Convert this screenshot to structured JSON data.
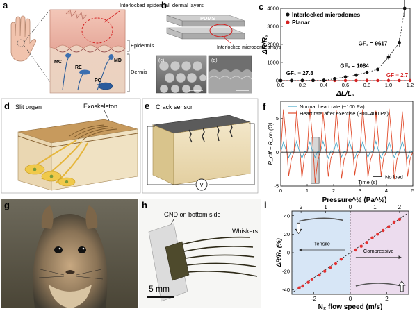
{
  "panel_letters": [
    "a",
    "b",
    "c",
    "d",
    "e",
    "f",
    "g",
    "h",
    "i"
  ],
  "panel_a": {
    "callout": "Interlocked epidermal–dermal layers",
    "layer_epidermis": "Epidermis",
    "layer_dermis": "Dermis",
    "labels": [
      "MC",
      "RE",
      "MD",
      "PC"
    ]
  },
  "panel_b": {
    "top_label": "PDMS",
    "callout": "Interlocked microdome arrays",
    "inset_c": "(c)",
    "inset_d": "(d)"
  },
  "panel_d": {
    "title": "Slit organ",
    "callout": "Exoskeleton"
  },
  "panel_e": {
    "title": "Crack sensor",
    "meter": "V"
  },
  "panel_h": {
    "gnd_label": "GND on bottom side",
    "whiskers_label": "Whiskers",
    "scale": "5 mm"
  },
  "chart_data": [
    {
      "panel": "c",
      "type": "scatter",
      "xlabel": "ΔL/L₀",
      "ylabel": "ΔR/R₀",
      "xlim": [
        0,
        1.2
      ],
      "ylim": [
        0,
        4000
      ],
      "xticks": [
        "0.0",
        "0.2",
        "0.4",
        "0.6",
        "0.8",
        "1.0",
        "1.2"
      ],
      "yticks": [
        "0",
        "1000",
        "2000",
        "3000",
        "4000"
      ],
      "legend": [
        "Interlocked microdomes",
        "Planar"
      ],
      "legend_position": "top-left",
      "annotations": [
        "GF₁ = 27.8",
        "GF₂ = 1084",
        "GF₃ = 9617",
        "GF = 2.7"
      ],
      "series": [
        {
          "name": "Interlocked microdomes",
          "color": "#111111",
          "x": [
            0,
            0.1,
            0.2,
            0.3,
            0.4,
            0.5,
            0.6,
            0.7,
            0.8,
            0.9,
            1.0,
            1.1,
            1.15
          ],
          "y": [
            0,
            3,
            6,
            9,
            12,
            100,
            200,
            300,
            450,
            620,
            1300,
            2100,
            4000
          ]
        },
        {
          "name": "Planar",
          "color": "#d42020",
          "x": [
            0,
            0.1,
            0.2,
            0.3,
            0.4,
            0.5,
            0.6,
            0.7,
            0.8,
            0.9,
            1.0,
            1.1,
            1.2
          ],
          "y": [
            0,
            0,
            0,
            1,
            1,
            1,
            2,
            2,
            2,
            2,
            3,
            3,
            3
          ]
        }
      ]
    },
    {
      "panel": "f",
      "type": "line",
      "xlabel": "Time (s)",
      "ylabel": "R_off − R_on (Ω)",
      "xlim": [
        0,
        5
      ],
      "ylim": [
        -5,
        7.5
      ],
      "xticks": [
        "0",
        "1",
        "2",
        "3",
        "4",
        "5"
      ],
      "yticks": [
        "-5",
        "0",
        "5"
      ],
      "legend": [
        "Normal heart rate (~100 Pa)",
        "Heart rate after exercise (300–400 Pa)",
        "No load"
      ],
      "series": [
        {
          "name": "Normal heart rate (~100 Pa)",
          "color": "#4aa8c8",
          "x": [
            0,
            0.1,
            0.2,
            0.3,
            0.4,
            0.5,
            0.6,
            0.7,
            0.8,
            0.9,
            1.0,
            1.1,
            1.2,
            1.3,
            1.4,
            1.5,
            1.6,
            1.7,
            1.8,
            1.9,
            2.0,
            2.1,
            2.2,
            2.3,
            2.4,
            2.5,
            2.6,
            2.7,
            2.8,
            2.9,
            3.0,
            3.1,
            3.2,
            3.3,
            3.4,
            3.5,
            3.6,
            3.7,
            3.8,
            3.9,
            4.0,
            4.1,
            4.2,
            4.3,
            4.4,
            4.5,
            4.6,
            4.7,
            4.8,
            4.9,
            5.0
          ],
          "y": [
            0,
            1.5,
            0.3,
            -0.8,
            0.2,
            0,
            1.6,
            0.2,
            -0.9,
            0.1,
            0,
            1.5,
            0.2,
            -0.8,
            0.1,
            0,
            1.6,
            0.3,
            -0.9,
            0.2,
            0,
            1.5,
            0.2,
            -0.7,
            0.1,
            0,
            1.6,
            0.2,
            -0.9,
            0.1,
            0,
            1.5,
            0.3,
            -0.8,
            0.2,
            0,
            1.6,
            0.2,
            -0.9,
            0.1,
            0,
            1.5,
            0.2,
            -0.8,
            0.1,
            0,
            1.6,
            0.3,
            -0.9,
            0.2,
            0
          ]
        },
        {
          "name": "Heart rate after exercise (300–400 Pa)",
          "color": "#e04a2a",
          "x": [
            0,
            0.1,
            0.2,
            0.3,
            0.4,
            0.5,
            0.6,
            0.7,
            0.8,
            0.9,
            1.0,
            1.1,
            1.2,
            1.3,
            1.4,
            1.5,
            1.6,
            1.7,
            1.8,
            1.9,
            2.0,
            2.1,
            2.2,
            2.3,
            2.4,
            2.5,
            2.6,
            2.7,
            2.8,
            2.9,
            3.0,
            3.1,
            3.2,
            3.3,
            3.4,
            3.5,
            3.6,
            3.7,
            3.8,
            3.9,
            4.0,
            4.1,
            4.2,
            4.3,
            4.4,
            4.5,
            4.6,
            4.7,
            4.8,
            4.9,
            5.0
          ],
          "y": [
            0,
            6.3,
            2,
            -3.5,
            -1,
            0,
            6.1,
            1.5,
            -3.8,
            -0.5,
            0,
            6.4,
            2.2,
            -4.5,
            -1.2,
            0,
            5.9,
            1.8,
            -3.6,
            -0.8,
            0,
            6.2,
            2,
            -3.9,
            -1,
            0,
            6.0,
            1.6,
            -3.4,
            -0.6,
            0,
            6.3,
            2.1,
            -3.7,
            -1.1,
            0,
            6.1,
            1.7,
            -3.5,
            -0.7,
            0,
            6.4,
            2.2,
            -4.0,
            -1.0,
            0,
            6.0,
            1.9,
            -3.6,
            -0.9,
            0
          ]
        },
        {
          "name": "No load",
          "color": "#222222",
          "x": [
            0,
            5
          ],
          "y": [
            0,
            0
          ]
        }
      ]
    },
    {
      "panel": "i",
      "type": "scatter",
      "xlabel": "N₂ flow speed (m/s)",
      "ylabel": "ΔR/R₀ (%)",
      "top_xlabel": "Pressure^½ (Pa^½)",
      "xlim": [
        -3.2,
        3.2
      ],
      "ylim": [
        -45,
        45
      ],
      "xticks": [
        "-2",
        "0",
        "2"
      ],
      "top_xticks": [
        "2",
        "1",
        "0",
        "1",
        "2"
      ],
      "yticks": [
        "-40",
        "-20",
        "0",
        "20",
        "40"
      ],
      "annotations": [
        "Tensile",
        "Compressive"
      ],
      "series": [
        {
          "name": "",
          "color": "#e23030",
          "x": [
            -2.8,
            -2.6,
            -2.3,
            -2.1,
            -1.7,
            -1.4,
            -1.1,
            -0.8,
            -0.5,
            0.3,
            0.6,
            0.9,
            1.2,
            1.5,
            1.8,
            2.1,
            2.4,
            2.7
          ],
          "y": [
            -38,
            -36,
            -32,
            -29,
            -24,
            -20,
            -16,
            -12,
            -7,
            3,
            7,
            11,
            16,
            20,
            24,
            28,
            33,
            36
          ]
        }
      ]
    }
  ]
}
